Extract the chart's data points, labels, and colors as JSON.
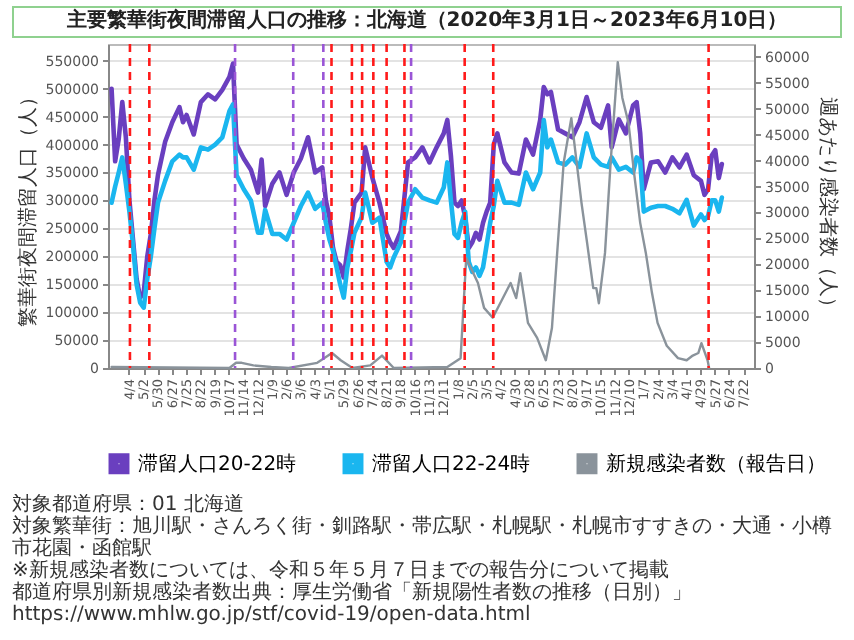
{
  "chart_data": {
    "type": "line",
    "title": "主要繁華街夜間滞留人口の推移：北海道（2020年3月1日～2023年6月10日）",
    "ylabel": "繁華街夜間滞留人口（人）",
    "y2label": "週あたり感染者数（人）",
    "x": [
      "2020-03-01",
      "2020-03-08",
      "2020-03-15",
      "2020-03-22",
      "2020-03-29",
      "2020-04-05",
      "2020-04-12",
      "2020-04-19",
      "2020-04-26",
      "2020-05-03",
      "2020-05-10",
      "2020-05-17",
      "2020-05-24",
      "2020-05-31",
      "2020-06-14",
      "2020-06-28",
      "2020-07-12",
      "2020-07-19",
      "2020-07-26",
      "2020-08-09",
      "2020-08-23",
      "2020-09-06",
      "2020-09-20",
      "2020-10-04",
      "2020-10-18",
      "2020-10-25",
      "2020-11-01",
      "2020-11-15",
      "2020-11-29",
      "2020-12-13",
      "2020-12-20",
      "2020-12-27",
      "2021-01-10",
      "2021-01-24",
      "2021-02-07",
      "2021-02-21",
      "2021-03-07",
      "2021-03-21",
      "2021-04-04",
      "2021-04-18",
      "2021-04-25",
      "2021-05-02",
      "2021-05-09",
      "2021-05-16",
      "2021-05-23",
      "2021-05-30",
      "2021-06-06",
      "2021-06-13",
      "2021-06-20",
      "2021-07-04",
      "2021-07-11",
      "2021-07-25",
      "2021-08-08",
      "2021-08-22",
      "2021-08-29",
      "2021-09-05",
      "2021-09-19",
      "2021-10-03",
      "2021-10-17",
      "2021-10-31",
      "2021-11-14",
      "2021-11-28",
      "2021-12-12",
      "2021-12-19",
      "2021-12-26",
      "2022-01-02",
      "2022-01-09",
      "2022-01-16",
      "2022-01-23",
      "2022-01-30",
      "2022-02-06",
      "2022-02-13",
      "2022-02-20",
      "2022-02-27",
      "2022-03-06",
      "2022-03-13",
      "2022-03-20",
      "2022-03-27",
      "2022-04-10",
      "2022-04-24",
      "2022-05-08",
      "2022-05-22",
      "2022-06-05",
      "2022-06-19",
      "2022-06-26",
      "2022-07-03",
      "2022-07-10",
      "2022-07-24",
      "2022-08-07",
      "2022-08-21",
      "2022-09-04",
      "2022-09-18",
      "2022-10-02",
      "2022-10-16",
      "2022-10-30",
      "2022-11-06",
      "2022-11-20",
      "2022-12-04",
      "2022-12-18",
      "2022-12-25",
      "2023-01-01",
      "2023-01-08",
      "2023-01-22",
      "2023-02-05",
      "2023-02-19",
      "2023-03-05",
      "2023-03-19",
      "2023-04-02",
      "2023-04-16",
      "2023-04-30",
      "2023-05-07",
      "2023-05-14",
      "2023-05-21",
      "2023-05-28",
      "2023-06-04",
      "2023-06-10"
    ],
    "series": [
      {
        "name": "滞留人口20-22時",
        "color": "#6a3fbf",
        "values": [
          500000,
          370000,
          410000,
          476000,
          413000,
          300000,
          230000,
          160000,
          126000,
          135000,
          200000,
          240000,
          300000,
          346000,
          405000,
          440000,
          467000,
          440000,
          453000,
          418000,
          476000,
          490000,
          481000,
          498000,
          521000,
          545000,
          400000,
          375000,
          355000,
          314000,
          373000,
          290000,
          330000,
          350000,
          310000,
          350000,
          375000,
          413000,
          350000,
          359000,
          300000,
          270000,
          215000,
          190000,
          184000,
          162000,
          210000,
          250000,
          296000,
          314000,
          395000,
          341000,
          296000,
          240000,
          225000,
          215000,
          245000,
          368000,
          377000,
          395000,
          368000,
          395000,
          420000,
          444000,
          380000,
          296000,
          290000,
          300000,
          270000,
          215000,
          225000,
          242000,
          230000,
          260000,
          280000,
          296000,
          400000,
          420000,
          368000,
          350000,
          348000,
          409000,
          382000,
          444000,
          503000,
          490000,
          494000,
          427000,
          420000,
          413000,
          440000,
          485000,
          440000,
          430000,
          470000,
          395000,
          445000,
          420000,
          470000,
          476000,
          420000,
          320000,
          368000,
          370000,
          350000,
          377000,
          359000,
          382000,
          345000,
          335000,
          310000,
          320000,
          380000,
          390000,
          340000,
          365000
        ]
      },
      {
        "name": "滞留人口22-24時",
        "color": "#1ab6ef",
        "values": [
          296000,
          325000,
          350000,
          377000,
          330000,
          280000,
          220000,
          150000,
          117000,
          108000,
          160000,
          200000,
          250000,
          296000,
          335000,
          370000,
          382000,
          377000,
          377000,
          355000,
          395000,
          391000,
          400000,
          413000,
          460000,
          472000,
          345000,
          320000,
          300000,
          242000,
          242000,
          283000,
          240000,
          240000,
          230000,
          260000,
          290000,
          314000,
          285000,
          296000,
          260000,
          230000,
          210000,
          180000,
          150000,
          126000,
          180000,
          210000,
          242000,
          270000,
          314000,
          260000,
          269000,
          190000,
          180000,
          198000,
          225000,
          296000,
          320000,
          305000,
          300000,
          296000,
          323000,
          368000,
          300000,
          240000,
          233000,
          260000,
          280000,
          190000,
          172000,
          180000,
          165000,
          180000,
          220000,
          260000,
          290000,
          335000,
          296000,
          296000,
          292000,
          350000,
          320000,
          350000,
          444000,
          395000,
          409000,
          368000,
          364000,
          377000,
          360000,
          420000,
          377000,
          364000,
          360000,
          377000,
          355000,
          360000,
          350000,
          377000,
          370000,
          280000,
          287000,
          290000,
          290000,
          285000,
          277000,
          301000,
          255000,
          275000,
          265000,
          272000,
          300000,
          300000,
          280000,
          305000
        ]
      },
      {
        "name": "新規感染者数（報告日）",
        "color": "#8a939b",
        "axis": "y2",
        "x": [
          "2020-03-01",
          "2020-10-18",
          "2020-10-31",
          "2020-11-11",
          "2020-12-04",
          "2021-01-08",
          "2021-02-11",
          "2021-04-08",
          "2021-05-07",
          "2021-05-24",
          "2021-06-16",
          "2021-07-21",
          "2021-08-13",
          "2021-09-05",
          "2021-12-19",
          "2022-01-14",
          "2022-01-25",
          "2022-02-17",
          "2022-03-01",
          "2022-03-18",
          "2022-04-22",
          "2022-05-03",
          "2022-05-11",
          "2022-05-26",
          "2022-06-13",
          "2022-06-30",
          "2022-07-12",
          "2022-07-23",
          "2022-08-04",
          "2022-08-19",
          "2022-09-08",
          "2022-09-19",
          "2022-10-01",
          "2022-10-07",
          "2022-10-12",
          "2022-10-24",
          "2022-11-04",
          "2022-11-18",
          "2022-11-27",
          "2022-12-09",
          "2022-12-20",
          "2023-01-01",
          "2023-01-12",
          "2023-01-24",
          "2023-02-04",
          "2023-02-22",
          "2023-03-16",
          "2023-04-02",
          "2023-04-14",
          "2023-04-25",
          "2023-05-01",
          "2023-05-13",
          "2023-05-16"
        ],
        "values": [
          200,
          0,
          1000,
          1000,
          500,
          200,
          0,
          1000,
          2900,
          1500,
          0,
          500,
          2400,
          0,
          200,
          1900,
          21200,
          16400,
          11600,
          9700,
          16400,
          13500,
          18300,
          8700,
          5800,
          1500,
          7700,
          23200,
          39600,
          48200,
          31800,
          24100,
          15400,
          15400,
          12500,
          22200,
          39600,
          59000,
          52100,
          47300,
          37600,
          28000,
          22200,
          14500,
          8700,
          4300,
          1900,
          1500,
          2400,
          2900,
          4800,
          1500,
          0
        ]
      }
    ],
    "xlim": [
      "2020-02-23",
      "2023-08-12"
    ],
    "xticks": [
      {
        "value": "2020-04-04",
        "label": "4/4"
      },
      {
        "value": "2020-05-02",
        "label": "5/2"
      },
      {
        "value": "2020-05-30",
        "label": "5/30"
      },
      {
        "value": "2020-06-27",
        "label": "6/27"
      },
      {
        "value": "2020-07-25",
        "label": "7/25"
      },
      {
        "value": "2020-08-22",
        "label": "8/22"
      },
      {
        "value": "2020-09-19",
        "label": "9/19"
      },
      {
        "value": "2020-10-17",
        "label": "10/17"
      },
      {
        "value": "2020-11-14",
        "label": "11/14"
      },
      {
        "value": "2020-12-12",
        "label": "12/12"
      },
      {
        "value": "2021-01-09",
        "label": "1/9"
      },
      {
        "value": "2021-02-06",
        "label": "2/6"
      },
      {
        "value": "2021-03-06",
        "label": "3/6"
      },
      {
        "value": "2021-04-03",
        "label": "4/3"
      },
      {
        "value": "2021-05-01",
        "label": "5/1"
      },
      {
        "value": "2021-05-29",
        "label": "5/29"
      },
      {
        "value": "2021-06-26",
        "label": "6/26"
      },
      {
        "value": "2021-07-24",
        "label": "7/24"
      },
      {
        "value": "2021-08-21",
        "label": "8/21"
      },
      {
        "value": "2021-09-18",
        "label": "9/18"
      },
      {
        "value": "2021-10-16",
        "label": "10/16"
      },
      {
        "value": "2021-11-13",
        "label": "11/13"
      },
      {
        "value": "2021-12-11",
        "label": "12/11"
      },
      {
        "value": "2022-01-08",
        "label": "1/8"
      },
      {
        "value": "2022-02-05",
        "label": "2/5"
      },
      {
        "value": "2022-03-05",
        "label": "3/5"
      },
      {
        "value": "2022-04-02",
        "label": "4/2"
      },
      {
        "value": "2022-04-30",
        "label": "4/30"
      },
      {
        "value": "2022-05-28",
        "label": "5/28"
      },
      {
        "value": "2022-06-25",
        "label": "6/25"
      },
      {
        "value": "2022-07-23",
        "label": "7/23"
      },
      {
        "value": "2022-08-20",
        "label": "8/20"
      },
      {
        "value": "2022-09-17",
        "label": "9/17"
      },
      {
        "value": "2022-10-15",
        "label": "10/15"
      },
      {
        "value": "2022-11-12",
        "label": "11/12"
      },
      {
        "value": "2022-12-10",
        "label": "12/10"
      },
      {
        "value": "2023-01-07",
        "label": "1/7"
      },
      {
        "value": "2023-02-04",
        "label": "2/4"
      },
      {
        "value": "2023-03-04",
        "label": "3/4"
      },
      {
        "value": "2023-04-01",
        "label": "4/1"
      },
      {
        "value": "2023-04-29",
        "label": "4/29"
      },
      {
        "value": "2023-05-27",
        "label": "5/27"
      },
      {
        "value": "2023-06-24",
        "label": "6/24"
      },
      {
        "value": "2023-07-22",
        "label": "7/22"
      }
    ],
    "ylim": [
      0,
      580000
    ],
    "yticks": [
      0,
      50000,
      100000,
      150000,
      200000,
      250000,
      300000,
      350000,
      400000,
      450000,
      500000,
      550000
    ],
    "y2lim": [
      0,
      62500
    ],
    "y2ticks": [
      0,
      5000,
      10000,
      15000,
      20000,
      25000,
      30000,
      35000,
      40000,
      45000,
      50000,
      55000,
      60000
    ],
    "ref_lines": [
      {
        "axis": "x",
        "value": "2020-04-06",
        "color": "#ff1a1a",
        "line_style": "dashed"
      },
      {
        "axis": "x",
        "value": "2020-05-14",
        "color": "#ff1a1a",
        "line_style": "dashed"
      },
      {
        "axis": "x",
        "value": "2020-10-29",
        "color": "#9a55d6",
        "line_style": "dashed"
      },
      {
        "axis": "x",
        "value": "2021-02-20",
        "color": "#9a55d6",
        "line_style": "dashed"
      },
      {
        "axis": "x",
        "value": "2021-04-20",
        "color": "#9a55d6",
        "line_style": "dashed"
      },
      {
        "axis": "x",
        "value": "2021-05-06",
        "color": "#ff1a1a",
        "line_style": "dashed"
      },
      {
        "axis": "x",
        "value": "2021-06-15",
        "color": "#ff1a1a",
        "line_style": "dashed"
      },
      {
        "axis": "x",
        "value": "2021-07-05",
        "color": "#ff1a1a",
        "line_style": "dashed"
      },
      {
        "axis": "x",
        "value": "2021-07-27",
        "color": "#ff1a1a",
        "line_style": "dashed"
      },
      {
        "axis": "x",
        "value": "2021-08-22",
        "color": "#ff1a1a",
        "line_style": "dashed"
      },
      {
        "axis": "x",
        "value": "2021-09-26",
        "color": "#ff1a1a",
        "line_style": "dashed"
      },
      {
        "axis": "x",
        "value": "2021-10-09",
        "color": "#9a55d6",
        "line_style": "dashed"
      },
      {
        "axis": "x",
        "value": "2022-01-22",
        "color": "#ff1a1a",
        "line_style": "dashed"
      },
      {
        "axis": "x",
        "value": "2022-03-19",
        "color": "#ff1a1a",
        "line_style": "dashed"
      },
      {
        "axis": "x",
        "value": "2023-05-15",
        "color": "#ff1a1a",
        "line_style": "dashed"
      }
    ],
    "grid": "y",
    "legend": "bottom",
    "annotations": [
      "対象都道府県：01 北海道",
      "対象繁華街：旭川駅・さんろく街・釧路駅・帯広駅・札幌駅・札幌市すすきの・大通・小樽市花園・函館駅",
      "※新規感染者数については、令和５年５月７日までの報告分について掲載",
      "都道府県別新規感染者数出典：厚生労働省「新規陽性者数の推移（日別）」 https://www.mhlw.go.jp/stf/covid-19/open-data.html"
    ]
  }
}
